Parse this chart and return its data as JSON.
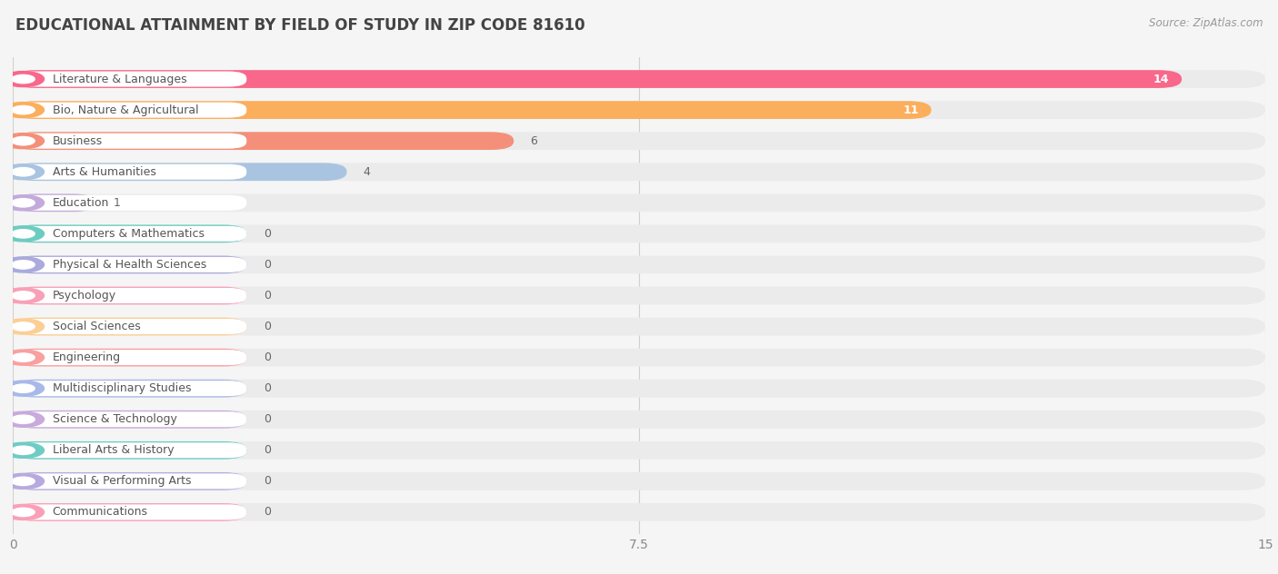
{
  "title": "EDUCATIONAL ATTAINMENT BY FIELD OF STUDY IN ZIP CODE 81610",
  "source": "Source: ZipAtlas.com",
  "categories": [
    "Literature & Languages",
    "Bio, Nature & Agricultural",
    "Business",
    "Arts & Humanities",
    "Education",
    "Computers & Mathematics",
    "Physical & Health Sciences",
    "Psychology",
    "Social Sciences",
    "Engineering",
    "Multidisciplinary Studies",
    "Science & Technology",
    "Liberal Arts & History",
    "Visual & Performing Arts",
    "Communications"
  ],
  "values": [
    14,
    11,
    6,
    4,
    1,
    0,
    0,
    0,
    0,
    0,
    0,
    0,
    0,
    0,
    0
  ],
  "bar_colors": [
    "#F9678A",
    "#FBAE5C",
    "#F4907A",
    "#A8C4E0",
    "#C3AADB",
    "#6DCCC0",
    "#ABAADE",
    "#F9A0B8",
    "#FBCF96",
    "#F9A0A0",
    "#A8B8E8",
    "#C8AADB",
    "#6ECCC4",
    "#B8AADE",
    "#F9A0B8"
  ],
  "icon_colors": [
    "#F9678A",
    "#FBAE5C",
    "#F4907A",
    "#A8C4E0",
    "#C3AADB",
    "#6DCCC0",
    "#ABAADE",
    "#F9A0B8",
    "#FBCF96",
    "#F9A0A0",
    "#A8B8E8",
    "#C8AADB",
    "#6ECCC4",
    "#B8AADE",
    "#F9A0B8"
  ],
  "xlim": [
    0,
    15
  ],
  "xticks": [
    0,
    7.5,
    15
  ],
  "background_color": "#f5f5f5",
  "row_bg_color": "#ffffff",
  "title_fontsize": 12,
  "label_fontsize": 9,
  "value_fontsize": 9
}
